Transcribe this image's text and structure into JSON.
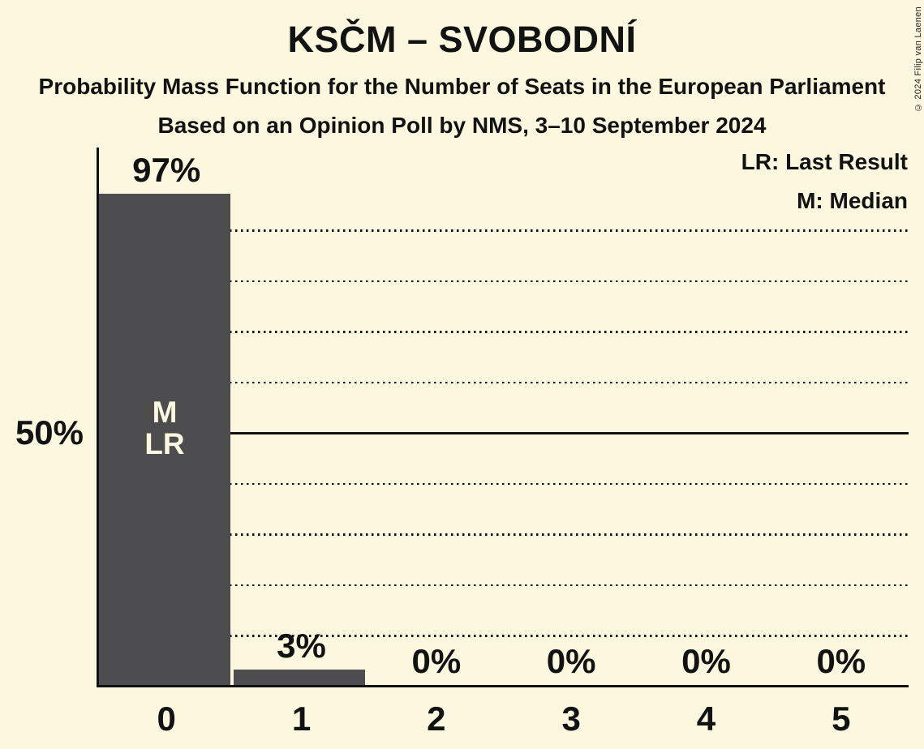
{
  "title": "KSČM – SVOBODNÍ",
  "subtitle": "Probability Mass Function for the Number of Seats in the European Parliament",
  "subsubtitle": "Based on an Opinion Poll by NMS, 3–10 September 2024",
  "copyright": "© 2024 Filip van Laenen",
  "legend": {
    "lr": "LR: Last Result",
    "m": "M: Median"
  },
  "y_axis_label": "50%",
  "chart_data": {
    "type": "bar",
    "title": "KSČM – SVOBODNÍ",
    "categories": [
      "0",
      "1",
      "2",
      "3",
      "4",
      "5"
    ],
    "values": [
      97,
      3,
      0,
      0,
      0,
      0
    ],
    "value_labels": [
      "97%",
      "3%",
      "0%",
      "0%",
      "0%",
      "0%"
    ],
    "ylim": [
      0,
      106
    ],
    "y_tick_labels": [
      {
        "percent": 50,
        "label": "50%"
      }
    ],
    "gridlines": {
      "dotted_percents": [
        10,
        20,
        30,
        40,
        60,
        70,
        80,
        90
      ],
      "solid_percent": 50
    },
    "median_bar_index": 0,
    "last_result_bar_index": 0,
    "bar_annotations": [
      {
        "bar": 0,
        "lines": [
          "M",
          "LR"
        ]
      }
    ],
    "legend_entries": [
      "LR: Last Result",
      "M: Median"
    ],
    "legend_position": "top-right",
    "grid_on": true,
    "colors": {
      "background": "#FCF7DF",
      "bar": "#4D4D4F",
      "text": "#121212",
      "bar_label_text": "#FCF7DF",
      "axis": "#101010"
    }
  }
}
